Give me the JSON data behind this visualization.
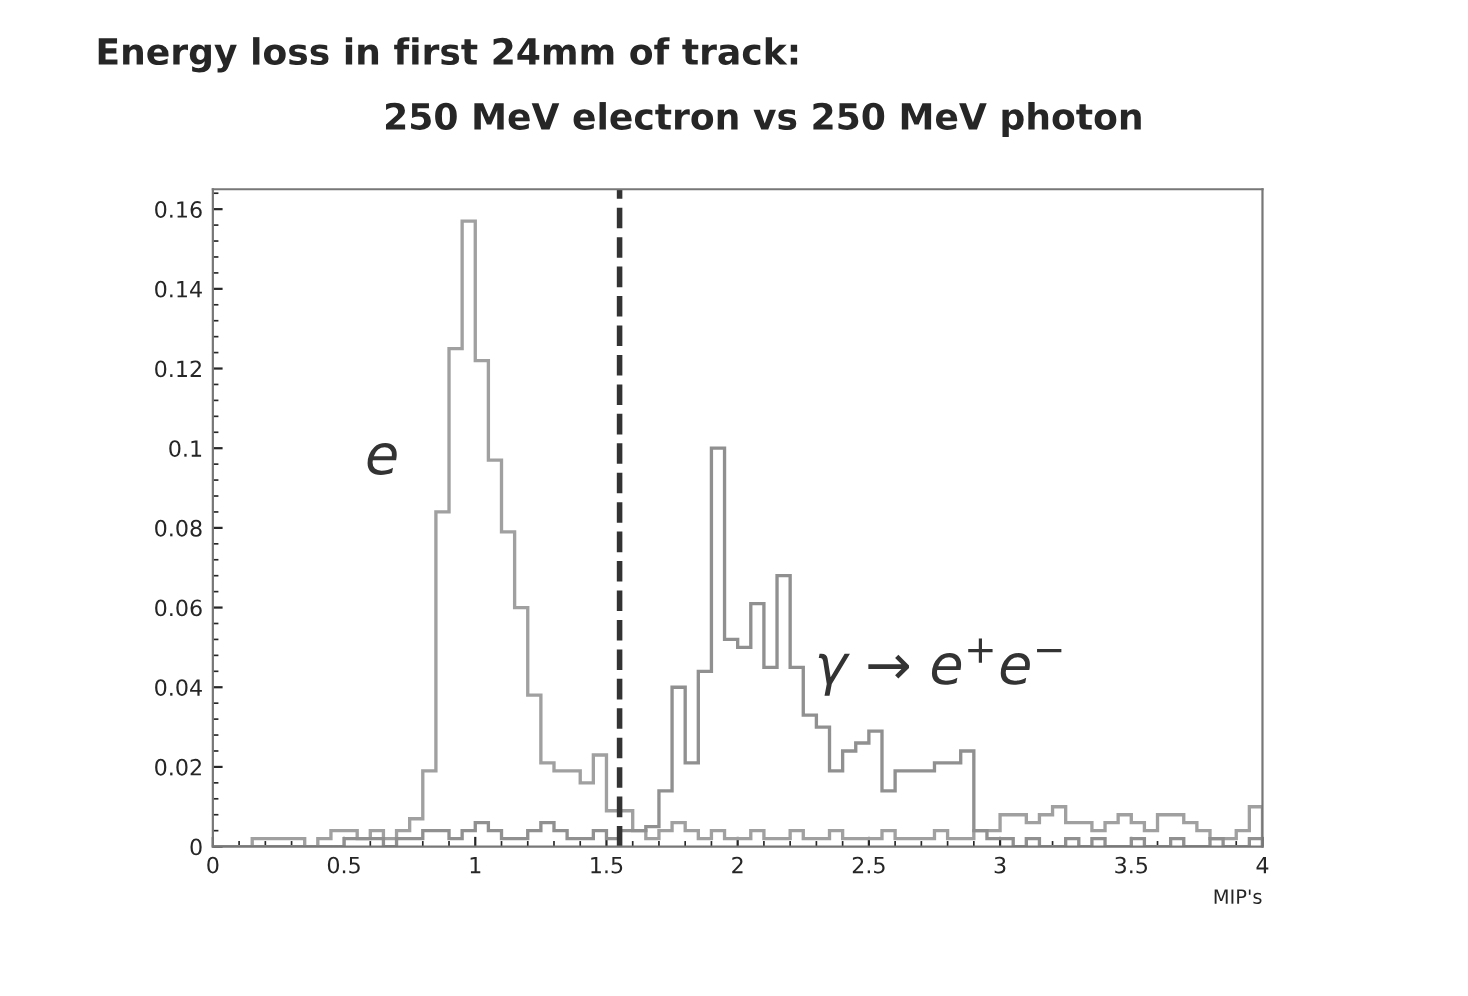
{
  "chart_data": {
    "type": "histogram",
    "title": "Energy loss in first 24mm of track:",
    "subtitle": "250 MeV electron vs 250 MeV photon",
    "xlabel": "MIP's",
    "bins": [
      0,
      0.05,
      0.1,
      0.15,
      0.2,
      0.25,
      0.3,
      0.35,
      0.4,
      0.45,
      0.5,
      0.55,
      0.6,
      0.65,
      0.7,
      0.75,
      0.8,
      0.85,
      0.9,
      0.95,
      1,
      1.05,
      1.1,
      1.15,
      1.2,
      1.25,
      1.3,
      1.35,
      1.4,
      1.45,
      1.5,
      1.55,
      1.6,
      1.65,
      1.7,
      1.75,
      1.8,
      1.85,
      1.9,
      1.95,
      2,
      2.05,
      2.1,
      2.15,
      2.2,
      2.25,
      2.3,
      2.35,
      2.4,
      2.45,
      2.5,
      2.55,
      2.6,
      2.65,
      2.7,
      2.75,
      2.8,
      2.85,
      2.9,
      2.95,
      3,
      3.05,
      3.1,
      3.15,
      3.2,
      3.25,
      3.3,
      3.35,
      3.4,
      3.45,
      3.5,
      3.55,
      3.6,
      3.65,
      3.7,
      3.75,
      3.8,
      3.85,
      3.9,
      3.95,
      4
    ],
    "series": [
      {
        "name": "e",
        "color": "#a0a0a0",
        "values": [
          0,
          0,
          0,
          0.002,
          0.002,
          0.002,
          0.002,
          0,
          0.002,
          0.004,
          0.004,
          0.002,
          0.004,
          0.002,
          0.004,
          0.007,
          0.019,
          0.084,
          0.125,
          0.157,
          0.122,
          0.097,
          0.079,
          0.06,
          0.038,
          0.021,
          0.019,
          0.019,
          0.016,
          0.023,
          0.009,
          0.009,
          0.004,
          0.002,
          0.004,
          0.006,
          0.004,
          0.002,
          0.004,
          0.002,
          0.002,
          0.004,
          0.002,
          0.002,
          0.004,
          0.002,
          0.002,
          0.004,
          0.002,
          0.002,
          0.002,
          0.004,
          0.002,
          0.002,
          0.002,
          0.004,
          0.002,
          0.002,
          0.004,
          0.004,
          0.008,
          0.008,
          0.006,
          0.008,
          0.01,
          0.006,
          0.006,
          0.004,
          0.006,
          0.008,
          0.006,
          0.004,
          0.008,
          0.008,
          0.006,
          0.004,
          0.002,
          0.002,
          0.004,
          0.01
        ]
      },
      {
        "name": "γ → e$^{+}$e$^{−}$",
        "color": "#909090",
        "values": [
          0,
          0,
          0,
          0,
          0,
          0,
          0,
          0,
          0,
          0,
          0.002,
          0.002,
          0.002,
          0,
          0.002,
          0.002,
          0.004,
          0.004,
          0.002,
          0.004,
          0.006,
          0.004,
          0.002,
          0.002,
          0.004,
          0.006,
          0.004,
          0.002,
          0.002,
          0.004,
          0.002,
          0.004,
          0.004,
          0.005,
          0.014,
          0.04,
          0.021,
          0.044,
          0.1,
          0.052,
          0.05,
          0.061,
          0.045,
          0.068,
          0.045,
          0.033,
          0.03,
          0.019,
          0.024,
          0.026,
          0.029,
          0.014,
          0.019,
          0.019,
          0.019,
          0.021,
          0.021,
          0.024,
          0.004,
          0.002,
          0.002,
          0,
          0.002,
          0,
          0,
          0.002,
          0,
          0.002,
          0,
          0,
          0.002,
          0,
          0,
          0.002,
          0,
          0,
          0.002,
          0,
          0,
          0.002
        ]
      }
    ],
    "xlim": [
      0,
      4
    ],
    "ylim": [
      0,
      0.165
    ],
    "xticks": [
      0,
      0.5,
      1,
      1.5,
      2,
      2.5,
      3,
      3.5,
      4
    ],
    "yticks": [
      0,
      0.02,
      0.04,
      0.06,
      0.08,
      0.1,
      0.12,
      0.14,
      0.16
    ],
    "ref_lines": [
      {
        "axis": "x",
        "value": 1.55,
        "color": "#333333",
        "line_style": "dashed"
      }
    ],
    "grid": false,
    "legend": false
  }
}
